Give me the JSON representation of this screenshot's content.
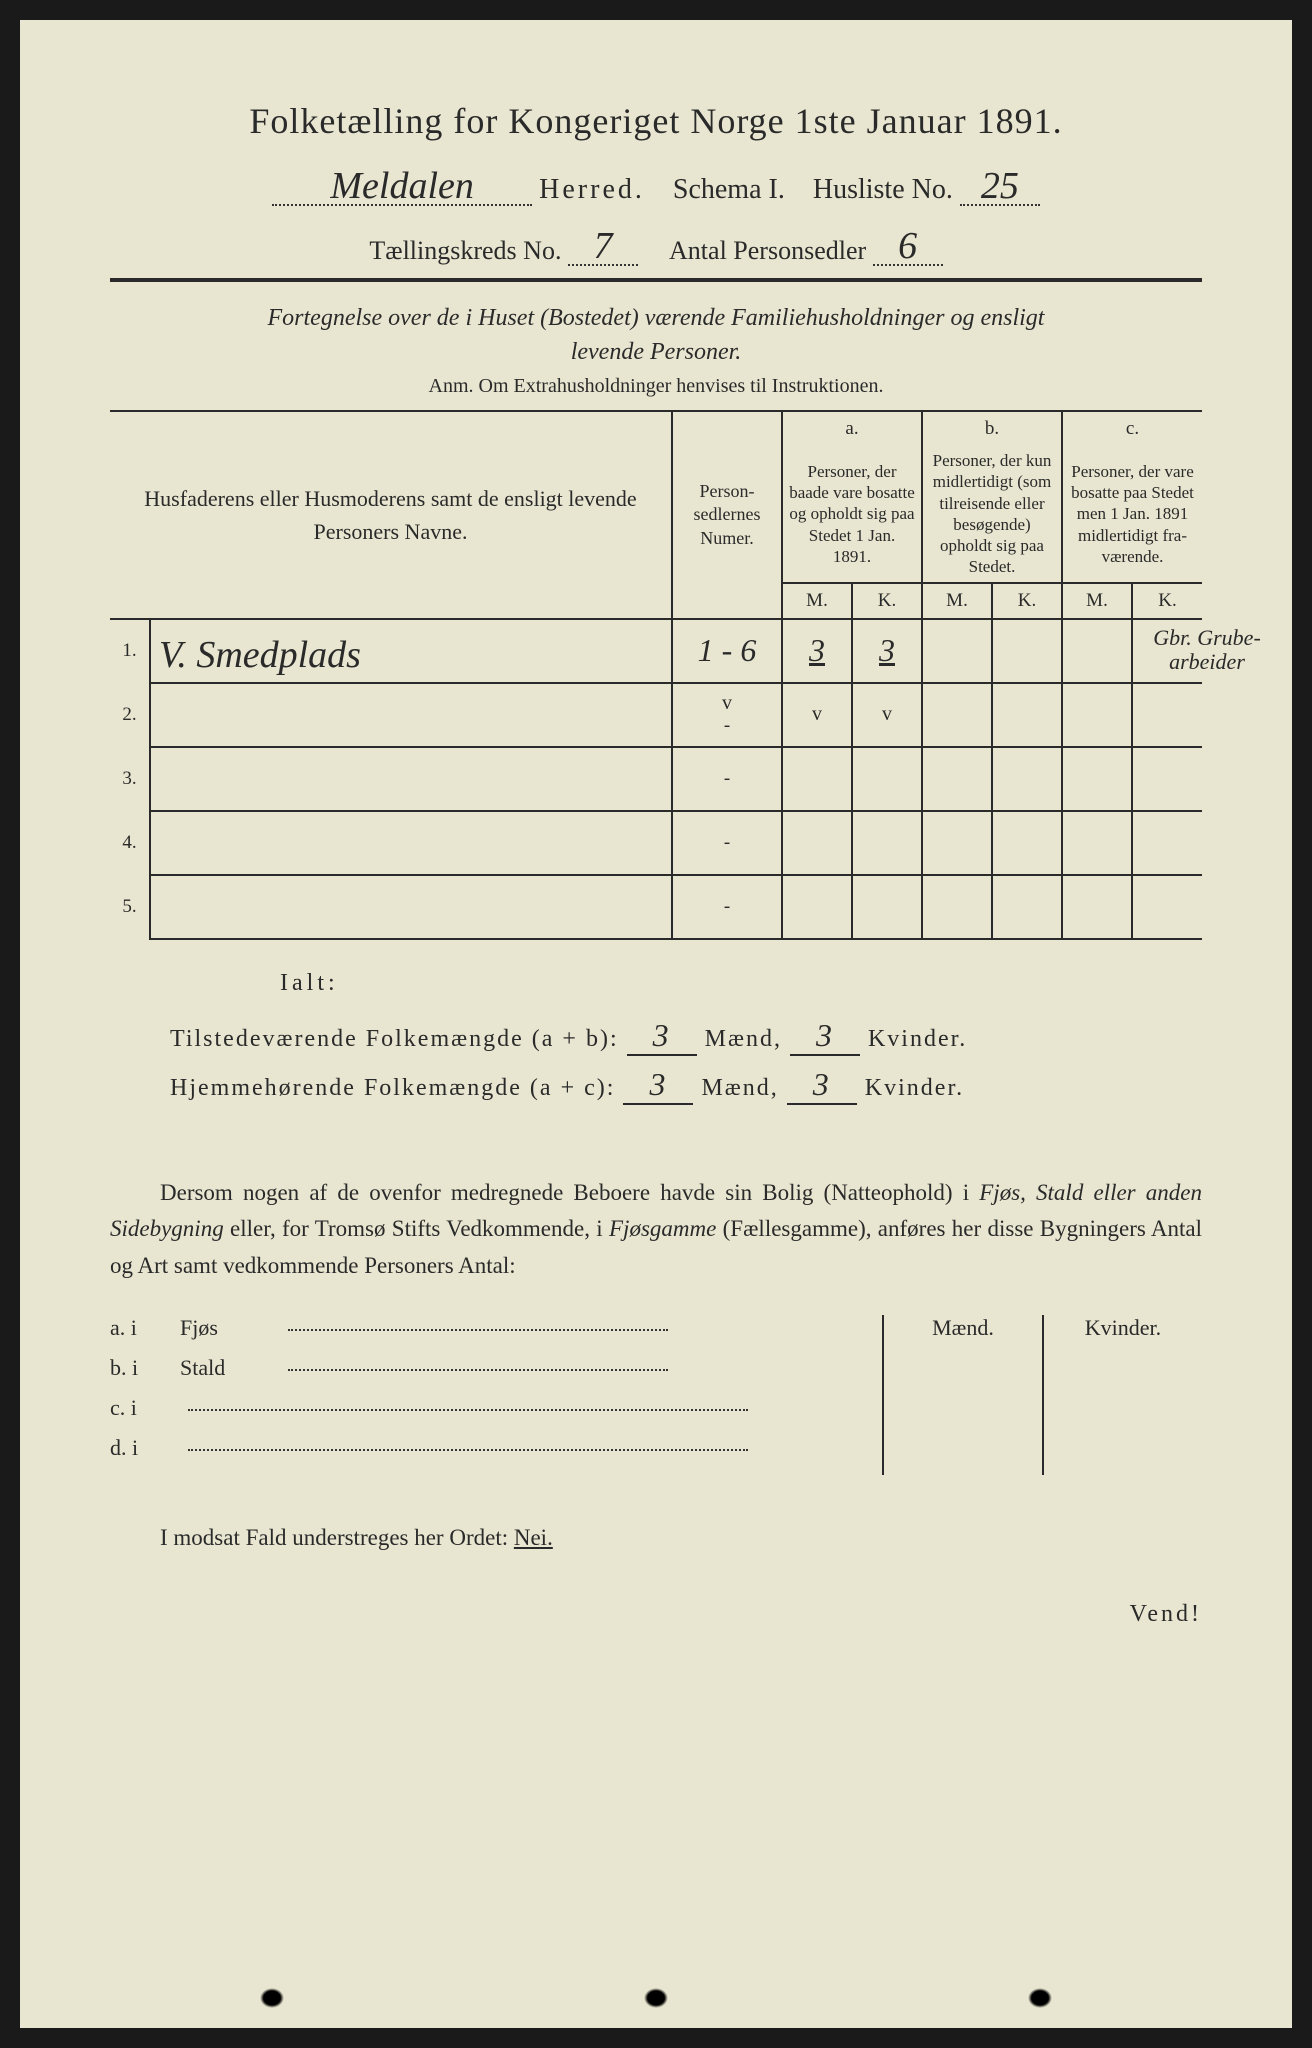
{
  "header": {
    "title": "Folketælling for Kongeriget Norge 1ste Januar 1891.",
    "herred_value": "Meldalen",
    "herred_label": "Herred.",
    "schema": "Schema I.",
    "husliste_label": "Husliste No.",
    "husliste_value": "25",
    "kreds_label": "Tællingskreds No.",
    "kreds_value": "7",
    "antal_label": "Antal Personsedler",
    "antal_value": "6"
  },
  "subtitle": {
    "line1": "Fortegnelse over de i Huset (Bostedet) værende Familiehusholdninger og ensligt",
    "line2": "levende Personer.",
    "anm": "Anm.  Om Extrahusholdninger henvises til Instruktionen."
  },
  "table": {
    "head": {
      "names": "Husfaderens eller Husmoderens samt de ensligt levende Personers Navne.",
      "personsed": "Person­sedler­nes Numer.",
      "a_label": "a.",
      "a_text": "Personer, der baade vare bo­satte og opholdt sig paa Stedet 1 Jan. 1891.",
      "b_label": "b.",
      "b_text": "Personer, der kun midler­tidigt (som tilreisende eller besøgende) opholdt sig paa Stedet.",
      "c_label": "c.",
      "c_text": "Personer, der vare bosatte paa Stedet men 1 Jan. 1891 midler­tidigt fra­værende.",
      "m": "M.",
      "k": "K."
    },
    "rows": [
      {
        "num": "1.",
        "name": "V. Smedplads",
        "sed": "1 - 6",
        "am": "3",
        "ak": "3",
        "bm": "",
        "bk": "",
        "cm": "",
        "ck": "",
        "note": "Gbr. Grube-arbeider"
      },
      {
        "num": "2.",
        "name": "",
        "sed": "-",
        "am": "v",
        "ak": "v",
        "bm": "",
        "bk": "",
        "cm": "",
        "ck": "",
        "tickrow": true,
        "sedtick": "v"
      },
      {
        "num": "3.",
        "name": "",
        "sed": "-",
        "am": "",
        "ak": "",
        "bm": "",
        "bk": "",
        "cm": "",
        "ck": ""
      },
      {
        "num": "4.",
        "name": "",
        "sed": "-",
        "am": "",
        "ak": "",
        "bm": "",
        "bk": "",
        "cm": "",
        "ck": ""
      },
      {
        "num": "5.",
        "name": "",
        "sed": "-",
        "am": "",
        "ak": "",
        "bm": "",
        "bk": "",
        "cm": "",
        "ck": ""
      }
    ]
  },
  "totals": {
    "ialt": "Ialt:",
    "line1_label": "Tilstedeværende Folkemængde (a + b):",
    "line2_label": "Hjemmehørende Folkemængde (a + c):",
    "maend": "Mænd,",
    "kvinder": "Kvinder.",
    "v1m": "3",
    "v1k": "3",
    "v2m": "3",
    "v2k": "3"
  },
  "para": {
    "text1": "Dersom nogen af de ovenfor medregnede Beboere havde sin Bolig (Natte­ophold) i ",
    "italic1": "Fjøs, Stald eller anden Sidebygning",
    "text2": " eller, for Tromsø Stifts Ved­kommende, i ",
    "italic2": "Fjøsgamme",
    "text3": " (Fællesgamme), anføres her disse Bygningers Antal og Art samt vedkommende Personers Antal:"
  },
  "side": {
    "maend": "Mænd.",
    "kvinder": "Kvinder.",
    "rows": [
      {
        "label": "a.  i",
        "name": "Fjøs"
      },
      {
        "label": "b.  i",
        "name": "Stald"
      },
      {
        "label": "c.  i",
        "name": ""
      },
      {
        "label": "d.  i",
        "name": ""
      }
    ]
  },
  "bottom": {
    "text": "I modsat Fald understreges her Ordet: ",
    "nei": "Nei."
  },
  "vend": "Vend!"
}
